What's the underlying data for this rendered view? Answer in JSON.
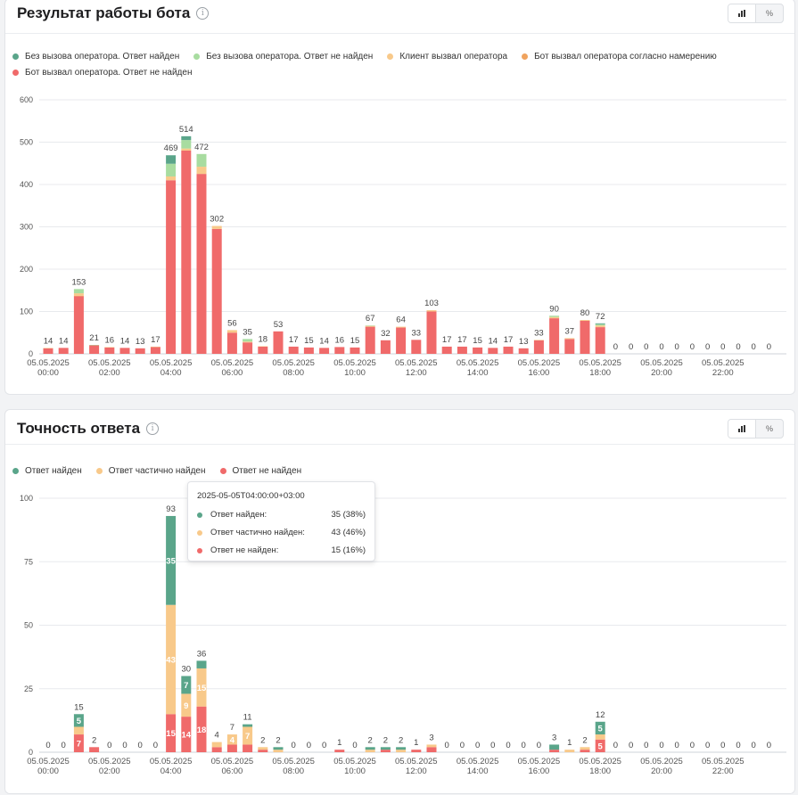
{
  "cards": [
    {
      "title": "Результат работы бота",
      "legend": [
        {
          "label": "Без вызова оператора. Ответ найден",
          "color": "#5aa58a"
        },
        {
          "label": "Без вызова оператора. Ответ не найден",
          "color": "#a8dca0"
        },
        {
          "label": "Клиент вызвал оператора",
          "color": "#f8c98a"
        },
        {
          "label": "Бот вызвал оператора согласно намерению",
          "color": "#f0a35e"
        },
        {
          "label": "Бот вызвал оператора. Ответ не найден",
          "color": "#f06a6a"
        }
      ],
      "toggle": {
        "percent_label": "%"
      }
    },
    {
      "title": "Точность ответа",
      "legend": [
        {
          "label": "Ответ найден",
          "color": "#5aa58a"
        },
        {
          "label": "Ответ частично найден",
          "color": "#f8c98a"
        },
        {
          "label": "Ответ не найден",
          "color": "#f06a6a"
        }
      ],
      "toggle": {
        "percent_label": "%"
      }
    }
  ],
  "tooltip": {
    "title": "2025-05-05T04:00:00+03:00",
    "rows": [
      {
        "label": "Ответ найден:",
        "value": "35 (38%)",
        "color": "#5aa58a"
      },
      {
        "label": "Ответ частично найден:",
        "value": "43 (46%)",
        "color": "#f8c98a"
      },
      {
        "label": "Ответ не найден:",
        "value": "15 (16%)",
        "color": "#f06a6a"
      }
    ]
  },
  "chart_data": [
    {
      "type": "bar",
      "stacked": true,
      "title": "Результат работы бота",
      "ylim": [
        0,
        600
      ],
      "yticks": [
        0,
        100,
        200,
        300,
        400,
        500,
        600
      ],
      "grid": true,
      "legend_position": "top-left",
      "x_tick_labels": [
        {
          "index": 0,
          "date": "05.05.2025",
          "time": "00:00"
        },
        {
          "index": 4,
          "date": "05.05.2025",
          "time": "02:00"
        },
        {
          "index": 8,
          "date": "05.05.2025",
          "time": "04:00"
        },
        {
          "index": 12,
          "date": "05.05.2025",
          "time": "06:00"
        },
        {
          "index": 16,
          "date": "05.05.2025",
          "time": "08:00"
        },
        {
          "index": 20,
          "date": "05.05.2025",
          "time": "10:00"
        },
        {
          "index": 24,
          "date": "05.05.2025",
          "time": "12:00"
        },
        {
          "index": 28,
          "date": "05.05.2025",
          "time": "14:00"
        },
        {
          "index": 32,
          "date": "05.05.2025",
          "time": "16:00"
        },
        {
          "index": 36,
          "date": "05.05.2025",
          "time": "18:00"
        },
        {
          "index": 40,
          "date": "05.05.2025",
          "time": "20:00"
        },
        {
          "index": 44,
          "date": "05.05.2025",
          "time": "22:00"
        }
      ],
      "totals": [
        14,
        14,
        153,
        21,
        16,
        14,
        13,
        17,
        469,
        514,
        472,
        302,
        56,
        35,
        18,
        53,
        17,
        15,
        14,
        16,
        15,
        67,
        32,
        64,
        33,
        103,
        17,
        17,
        15,
        14,
        17,
        13,
        33,
        90,
        37,
        80,
        72,
        0,
        0,
        0,
        0,
        0,
        0,
        0,
        0,
        0,
        0,
        0
      ],
      "series": [
        {
          "name": "Без вызова оператора. Ответ найден",
          "color": "#5aa58a",
          "values": [
            0,
            0,
            0,
            0,
            0,
            0,
            0,
            0,
            20,
            9,
            0,
            0,
            0,
            0,
            0,
            0,
            0,
            0,
            0,
            0,
            0,
            0,
            0,
            0,
            0,
            0,
            0,
            0,
            0,
            0,
            0,
            0,
            0,
            0,
            0,
            0,
            2,
            0,
            0,
            0,
            0,
            0,
            0,
            0,
            0,
            0,
            0,
            0
          ]
        },
        {
          "name": "Без вызова оператора. Ответ не найден",
          "color": "#a8dca0",
          "values": [
            0,
            0,
            10,
            1,
            0,
            0,
            0,
            0,
            30,
            20,
            30,
            0,
            0,
            6,
            0,
            0,
            0,
            0,
            0,
            0,
            0,
            1,
            0,
            0,
            0,
            0,
            0,
            0,
            0,
            0,
            0,
            0,
            0,
            3,
            0,
            0,
            3,
            0,
            0,
            0,
            0,
            0,
            0,
            0,
            0,
            0,
            0,
            0
          ]
        },
        {
          "name": "Клиент вызвал оператора",
          "color": "#f8c98a",
          "values": [
            1,
            0,
            6,
            0,
            1,
            0,
            0,
            1,
            9,
            5,
            17,
            7,
            6,
            2,
            1,
            0,
            0,
            0,
            0,
            0,
            0,
            2,
            0,
            2,
            0,
            3,
            0,
            0,
            0,
            0,
            0,
            0,
            1,
            3,
            2,
            2,
            4,
            0,
            0,
            0,
            0,
            0,
            0,
            0,
            0,
            0,
            0,
            0
          ]
        },
        {
          "name": "Бот вызвал оператора согласно намерению",
          "color": "#f0a35e",
          "values": [
            0,
            0,
            1,
            0,
            0,
            0,
            0,
            0,
            0,
            0,
            0,
            0,
            0,
            0,
            0,
            0,
            0,
            0,
            0,
            0,
            0,
            0,
            0,
            0,
            0,
            0,
            0,
            0,
            0,
            0,
            0,
            0,
            0,
            0,
            0,
            0,
            0,
            0,
            0,
            0,
            0,
            0,
            0,
            0,
            0,
            0,
            0,
            0
          ]
        },
        {
          "name": "Бот вызвал оператора. Ответ не найден",
          "color": "#f06a6a",
          "values": [
            13,
            14,
            136,
            20,
            15,
            14,
            13,
            16,
            410,
            480,
            425,
            295,
            50,
            27,
            17,
            53,
            17,
            15,
            14,
            16,
            15,
            64,
            32,
            62,
            33,
            100,
            17,
            17,
            15,
            14,
            17,
            13,
            32,
            84,
            35,
            78,
            63,
            0,
            0,
            0,
            0,
            0,
            0,
            0,
            0,
            0,
            0,
            0
          ]
        }
      ]
    },
    {
      "type": "bar",
      "stacked": true,
      "title": "Точность ответа",
      "ylim": [
        0,
        100
      ],
      "yticks": [
        0,
        25,
        50,
        75,
        100
      ],
      "grid": true,
      "legend_position": "top-left",
      "x_tick_labels": [
        {
          "index": 0,
          "date": "05.05.2025",
          "time": "00:00"
        },
        {
          "index": 4,
          "date": "05.05.2025",
          "time": "02:00"
        },
        {
          "index": 8,
          "date": "05.05.2025",
          "time": "04:00"
        },
        {
          "index": 12,
          "date": "05.05.2025",
          "time": "06:00"
        },
        {
          "index": 16,
          "date": "05.05.2025",
          "time": "08:00"
        },
        {
          "index": 20,
          "date": "05.05.2025",
          "time": "10:00"
        },
        {
          "index": 24,
          "date": "05.05.2025",
          "time": "12:00"
        },
        {
          "index": 28,
          "date": "05.05.2025",
          "time": "14:00"
        },
        {
          "index": 32,
          "date": "05.05.2025",
          "time": "16:00"
        },
        {
          "index": 36,
          "date": "05.05.2025",
          "time": "18:00"
        },
        {
          "index": 40,
          "date": "05.05.2025",
          "time": "20:00"
        },
        {
          "index": 44,
          "date": "05.05.2025",
          "time": "22:00"
        }
      ],
      "totals": [
        0,
        0,
        15,
        2,
        0,
        0,
        0,
        0,
        93,
        30,
        36,
        4,
        7,
        11,
        2,
        2,
        0,
        0,
        0,
        1,
        0,
        2,
        2,
        2,
        1,
        3,
        0,
        0,
        0,
        0,
        0,
        0,
        0,
        3,
        1,
        2,
        12,
        0,
        0,
        0,
        0,
        0,
        0,
        0,
        0,
        0,
        0,
        0
      ],
      "series": [
        {
          "name": "Ответ найден",
          "color": "#5aa58a",
          "values": [
            0,
            0,
            5,
            0,
            0,
            0,
            0,
            0,
            35,
            7,
            3,
            0,
            0,
            1,
            0,
            1,
            0,
            0,
            0,
            0,
            0,
            1,
            1,
            1,
            0,
            0,
            0,
            0,
            0,
            0,
            0,
            0,
            0,
            2,
            0,
            0,
            5,
            0,
            0,
            0,
            0,
            0,
            0,
            0,
            0,
            0,
            0,
            0
          ]
        },
        {
          "name": "Ответ частично найден",
          "color": "#f8c98a",
          "values": [
            0,
            0,
            3,
            0,
            0,
            0,
            0,
            0,
            43,
            9,
            15,
            2,
            4,
            7,
            1,
            1,
            0,
            0,
            0,
            0,
            0,
            1,
            0,
            1,
            0,
            1,
            0,
            0,
            0,
            0,
            0,
            0,
            0,
            0,
            1,
            1,
            2,
            0,
            0,
            0,
            0,
            0,
            0,
            0,
            0,
            0,
            0,
            0
          ]
        },
        {
          "name": "Ответ не найден",
          "color": "#f06a6a",
          "values": [
            0,
            0,
            7,
            2,
            0,
            0,
            0,
            0,
            15,
            14,
            18,
            2,
            3,
            3,
            1,
            0,
            0,
            0,
            0,
            1,
            0,
            0,
            1,
            0,
            1,
            2,
            0,
            0,
            0,
            0,
            0,
            0,
            0,
            1,
            0,
            1,
            5,
            0,
            0,
            0,
            0,
            0,
            0,
            0,
            0,
            0,
            0,
            0
          ]
        }
      ]
    }
  ]
}
